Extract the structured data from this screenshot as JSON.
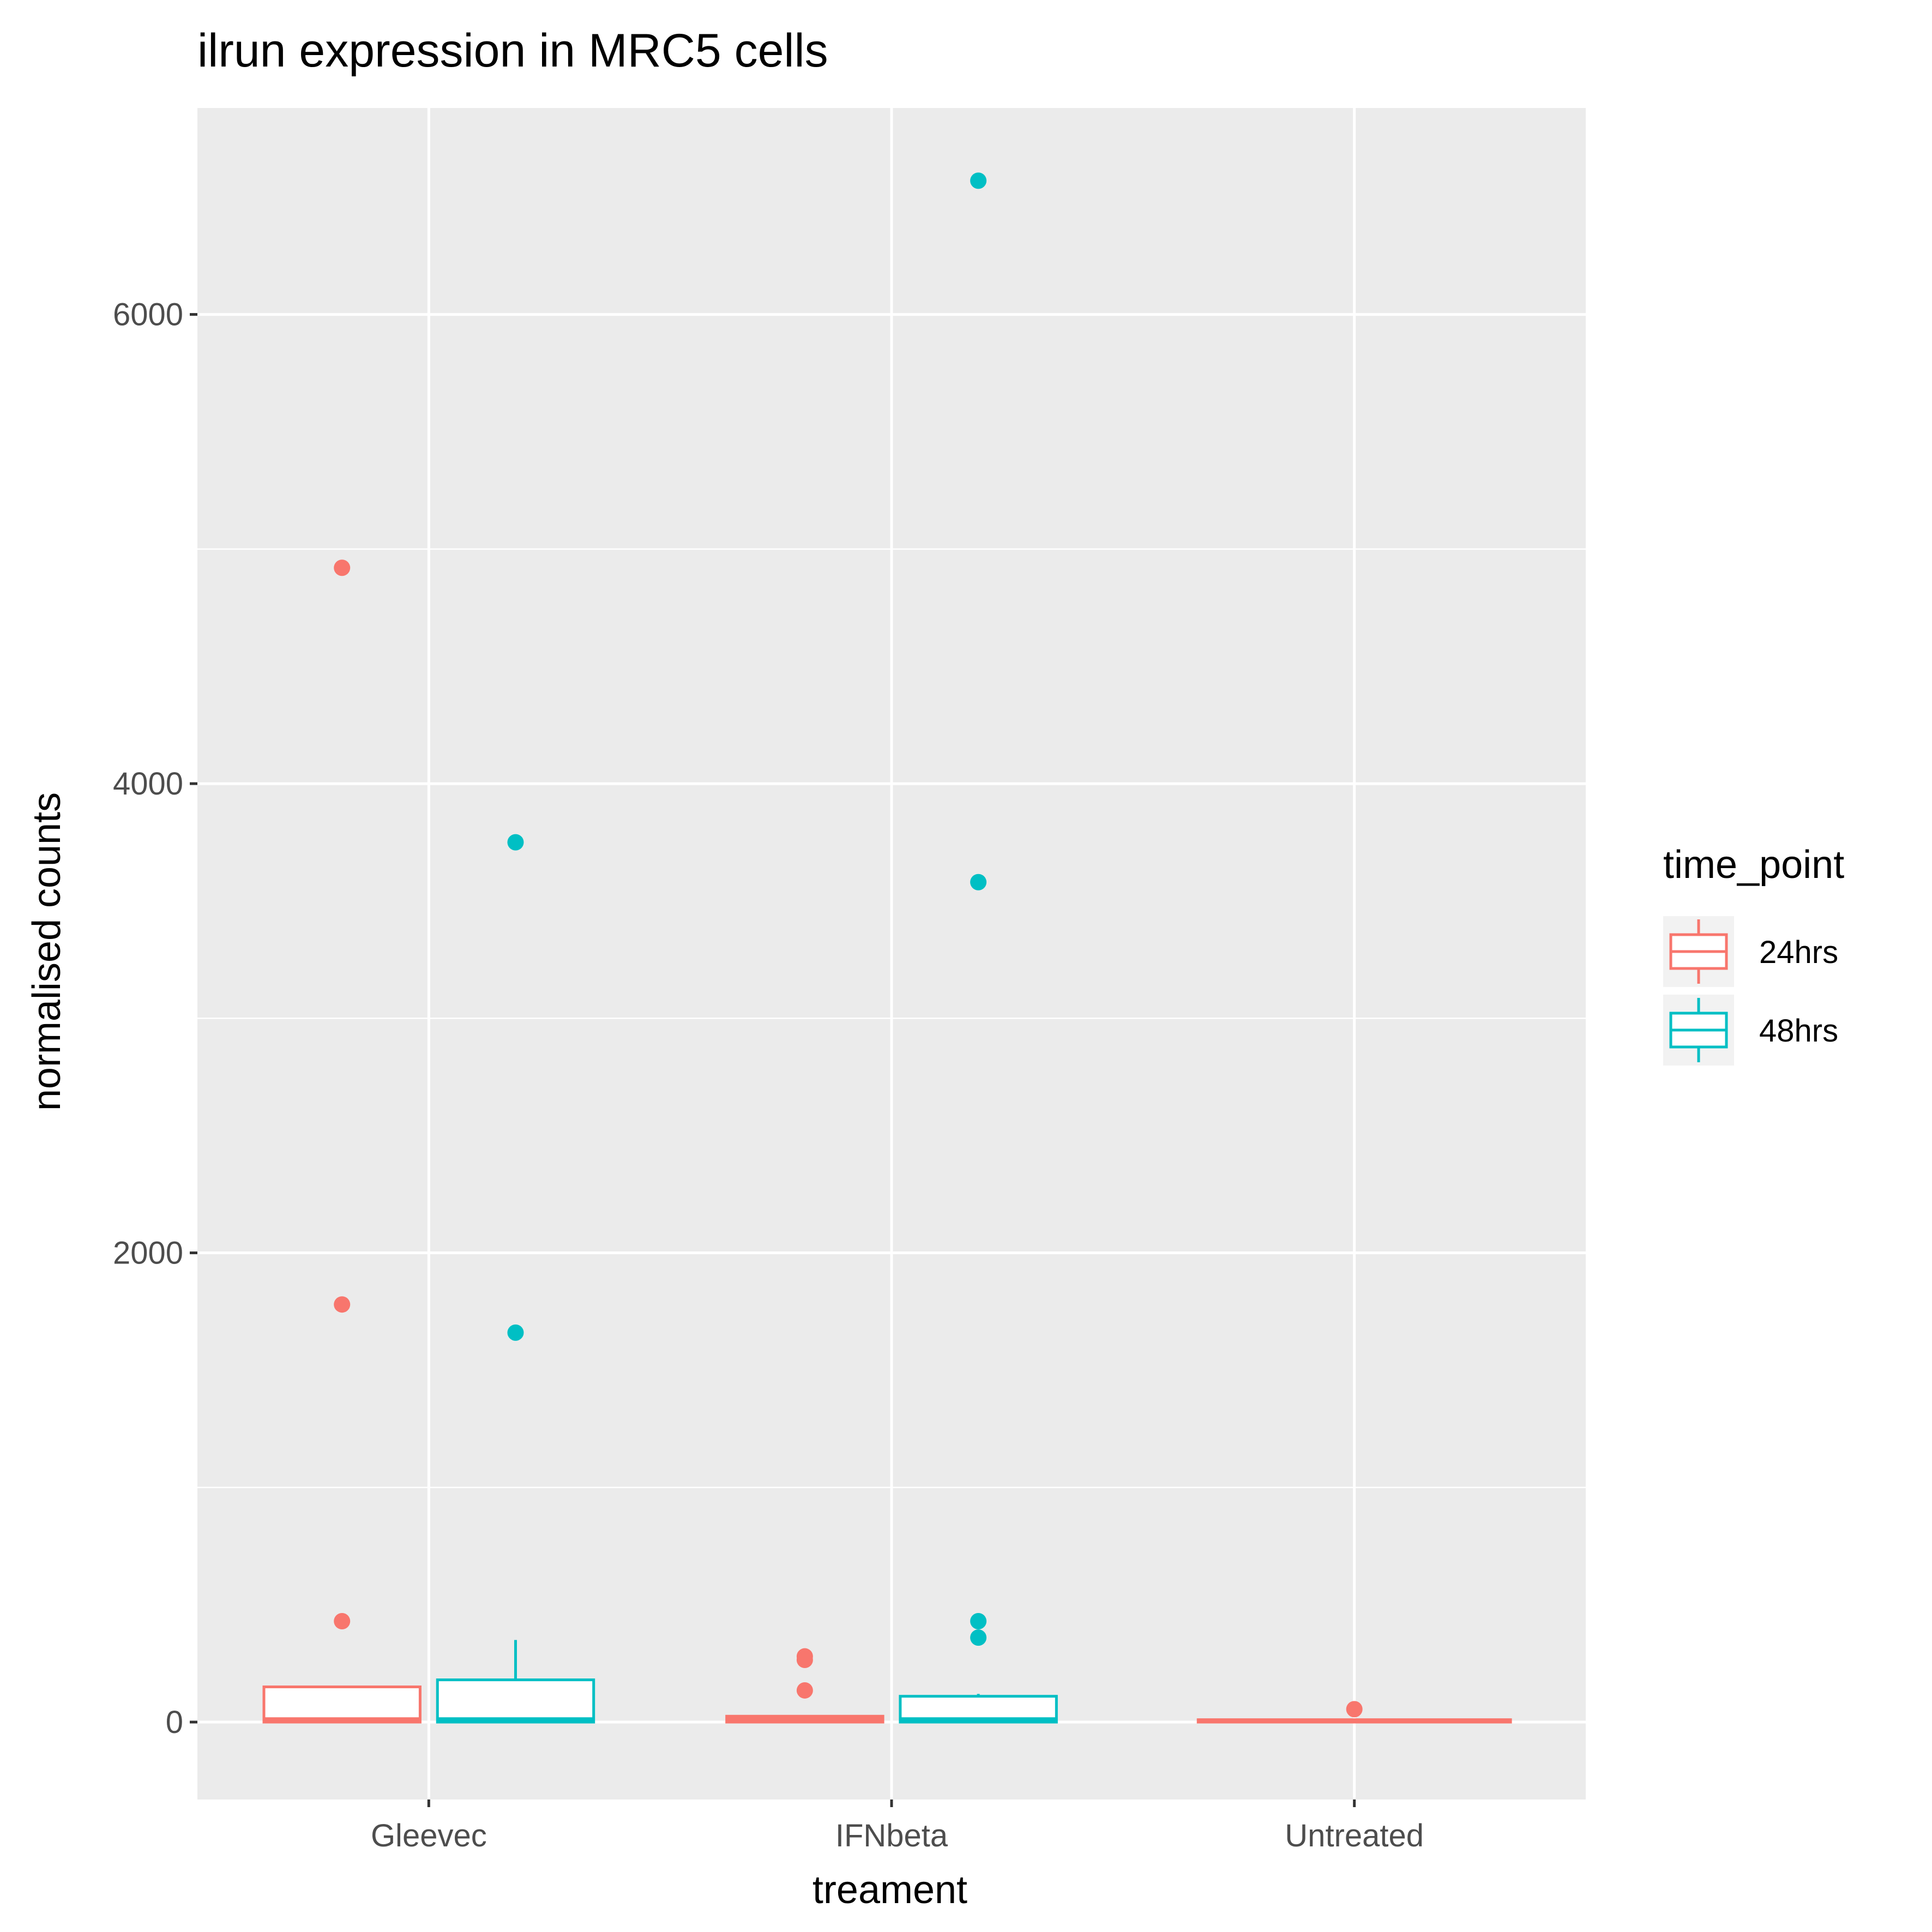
{
  "chart_data": {
    "type": "box",
    "title": "ilrun expression in MRC5 cells",
    "xlabel": "treament",
    "ylabel": "normalised counts",
    "categories": [
      "Gleevec",
      "IFNbeta",
      "Untreated"
    ],
    "ylim": [
      -330,
      6880
    ],
    "y_ticks": [
      0,
      2000,
      4000,
      6000
    ],
    "y_tick_labels": [
      "0",
      "2000",
      "4000",
      "6000"
    ],
    "grid": true,
    "legend": {
      "title": "time_point",
      "position": "right",
      "entries": [
        {
          "label": "24hrs",
          "color": "#F8766D"
        },
        {
          "label": "48hrs",
          "color": "#00BFC4"
        }
      ]
    },
    "series": [
      {
        "name": "24hrs",
        "color": "#F8766D",
        "boxes": [
          {
            "category": "Gleevec",
            "whisker_low": 0,
            "q1": 0,
            "median": 10,
            "q3": 150,
            "whisker_high": 150,
            "outliers": [
              4920,
              1780,
              430
            ]
          },
          {
            "category": "IFNbeta",
            "whisker_low": 0,
            "q1": 0,
            "median": 10,
            "q3": 25,
            "whisker_high": 25,
            "outliers": [
              280,
              265,
              135
            ]
          },
          {
            "category": "Untreated",
            "whisker_low": 0,
            "q1": 0,
            "median": 5,
            "q3": 10,
            "whisker_high": 10,
            "outliers": [
              55
            ]
          }
        ]
      },
      {
        "name": "48hrs",
        "color": "#00BFC4",
        "boxes": [
          {
            "category": "Gleevec",
            "whisker_low": 0,
            "q1": 0,
            "median": 10,
            "q3": 180,
            "whisker_high": 350,
            "outliers": [
              3750,
              1660
            ]
          },
          {
            "category": "IFNbeta",
            "whisker_low": 0,
            "q1": 0,
            "median": 10,
            "q3": 110,
            "whisker_high": 120,
            "outliers": [
              6570,
              3580,
              430,
              360
            ]
          }
        ]
      }
    ]
  }
}
